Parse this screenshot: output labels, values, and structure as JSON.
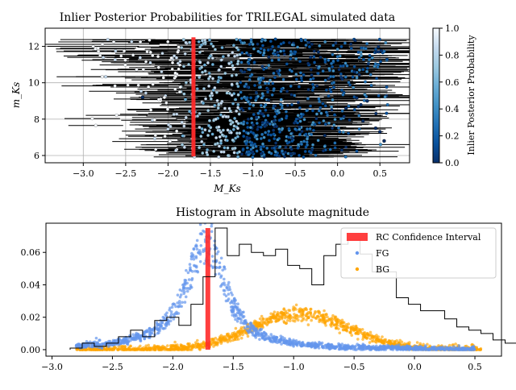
{
  "chart_data": [
    {
      "type": "scatter",
      "title": "Inlier Posterior Probabilities for TRILEGAL simulated data",
      "xlabel": "M_Ks",
      "ylabel": "m_Ks",
      "xlim": [
        -3.45,
        0.85
      ],
      "ylim": [
        5.6,
        13.0
      ],
      "xticks": [
        -3.0,
        -2.5,
        -2.0,
        -1.5,
        -1.0,
        -0.5,
        0.0,
        0.5
      ],
      "xtick_labels": [
        "−3.0",
        "−2.5",
        "−2.0",
        "−1.5",
        "−1.0",
        "−0.5",
        "0.0",
        "0.5"
      ],
      "yticks": [
        6,
        8,
        10,
        12
      ],
      "ytick_labels": [
        "6",
        "8",
        "10",
        "12"
      ],
      "grid": true,
      "vline": {
        "x": -1.7,
        "color": "#ff2a2a"
      },
      "cloud": {
        "x_center": -0.9,
        "x_spread": 0.85,
        "y_min": 5.9,
        "y_max": 12.4,
        "n": 900
      },
      "points": [
        {
          "x": 0.5,
          "y": 7.3
        },
        {
          "x": 0.55,
          "y": 6.8
        },
        {
          "x": 0.45,
          "y": 7.5
        },
        {
          "x": 0.3,
          "y": 7.9
        },
        {
          "x": 0.05,
          "y": 6.3
        },
        {
          "x": -0.3,
          "y": 6.3
        },
        {
          "x": -0.55,
          "y": 6.1
        },
        {
          "x": -0.9,
          "y": 6.1
        },
        {
          "x": 0.2,
          "y": 10.6
        },
        {
          "x": -0.2,
          "y": 11.4
        },
        {
          "x": 0.1,
          "y": 8.6
        },
        {
          "x": -2.3,
          "y": 9.2
        },
        {
          "x": -1.0,
          "y": 6.2
        },
        {
          "x": -0.15,
          "y": 7.1
        },
        {
          "x": 0.35,
          "y": 9.0
        }
      ],
      "colorbar": {
        "label": "Inlier Posterior Probability",
        "range": [
          0.0,
          1.0
        ],
        "ticks": [
          0.0,
          0.2,
          0.4,
          0.6,
          0.8,
          1.0
        ],
        "tick_labels": [
          "0.0",
          "0.2",
          "0.4",
          "0.6",
          "0.8",
          "1.0"
        ],
        "colors": [
          "#08306b",
          "#08519c",
          "#2171b5",
          "#4292c6",
          "#6baed6",
          "#9ecae1",
          "#c6dbef",
          "#f7fbff"
        ]
      }
    },
    {
      "type": "histogram",
      "title": "Histogram in Absolute magnitude",
      "xlabel": "",
      "ylabel": "",
      "xlim": [
        -3.05,
        0.72
      ],
      "ylim": [
        -0.004,
        0.078
      ],
      "xticks": [
        -3.0,
        -2.5,
        -2.0,
        -1.5,
        -1.0,
        -0.5,
        0.0,
        0.5
      ],
      "xtick_labels": [
        "−3.0",
        "−2.5",
        "−2.0",
        "−1.5",
        "−1.0",
        "−0.5",
        "0.0",
        "0.5"
      ],
      "yticks": [
        0.0,
        0.02,
        0.04,
        0.06
      ],
      "ytick_labels": [
        "0.00",
        "0.02",
        "0.04",
        "0.06"
      ],
      "bin_start": -2.85,
      "bin_width": 0.1,
      "hist_values": [
        0.001,
        0.004,
        0.002,
        0.004,
        0.008,
        0.012,
        0.008,
        0.018,
        0.02,
        0.015,
        0.028,
        0.045,
        0.075,
        0.058,
        0.065,
        0.06,
        0.058,
        0.062,
        0.052,
        0.05,
        0.04,
        0.058,
        0.065,
        0.068,
        0.059,
        0.048,
        0.048,
        0.032,
        0.028,
        0.024,
        0.024,
        0.019,
        0.014,
        0.012,
        0.01,
        0.006,
        0.004
      ],
      "series": [
        {
          "name": "FG",
          "color": "#6495ed",
          "peak_x": -1.72,
          "peak_y": 0.07,
          "left_width": 0.2,
          "right_width": 0.18,
          "x_min": -2.8,
          "x_max": 0.5
        },
        {
          "name": "BG",
          "color": "#ffa500",
          "peak_x": -0.95,
          "peak_y": 0.022,
          "width": 0.4,
          "x_min": -2.8,
          "x_max": 0.55
        }
      ],
      "band": {
        "name": "RC Confidence Interval",
        "x0": -1.73,
        "x1": -1.69,
        "color": "#ff2a2a"
      },
      "legend_position": "upper right"
    }
  ]
}
